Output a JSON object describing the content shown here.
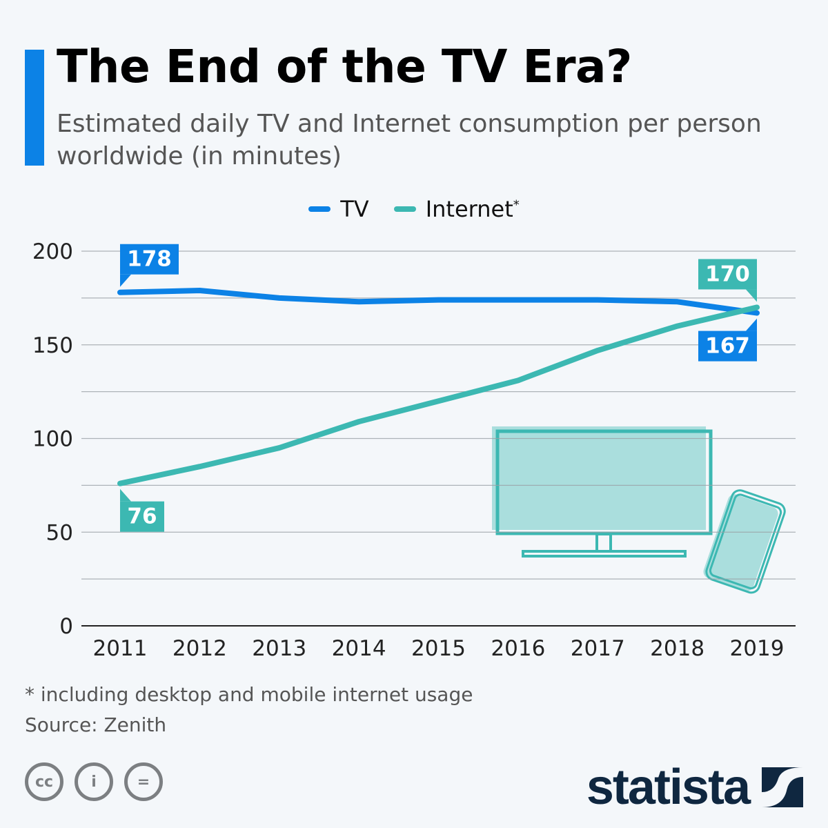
{
  "header": {
    "title": "The End of the TV Era?",
    "subtitle": "Estimated daily TV and Internet consumption per person worldwide (in minutes)"
  },
  "colors": {
    "accent": "#0c82e6",
    "tv": "#0c82e6",
    "internet": "#3cb8b2",
    "logo": "#0f2740"
  },
  "chart_data": {
    "type": "line",
    "title": "The End of the TV Era?",
    "subtitle": "Estimated daily TV and Internet consumption per person worldwide (in minutes)",
    "x": [
      "2011",
      "2012",
      "2013",
      "2014",
      "2015",
      "2016",
      "2017",
      "2018",
      "2019"
    ],
    "series": [
      {
        "name": "TV",
        "color": "#0c82e6",
        "values": [
          178,
          179,
          175,
          173,
          174,
          174,
          174,
          173,
          167
        ]
      },
      {
        "name": "Internet",
        "name_suffix": "*",
        "color": "#3cb8b2",
        "values": [
          76,
          85,
          95,
          109,
          120,
          131,
          147,
          160,
          170
        ]
      }
    ],
    "data_labels": [
      {
        "series": "TV",
        "x": "2011",
        "text": "178"
      },
      {
        "series": "TV",
        "x": "2019",
        "text": "167"
      },
      {
        "series": "Internet",
        "x": "2011",
        "text": "76"
      },
      {
        "series": "Internet",
        "x": "2019",
        "text": "170"
      }
    ],
    "ylim": [
      0,
      200
    ],
    "yticks": [
      0,
      50,
      100,
      150,
      200
    ],
    "grid": true,
    "legend": "top-center",
    "xlabel": "",
    "ylabel": ""
  },
  "illustration": [
    "tv-monitor-icon",
    "smartphone-icon"
  ],
  "footer": {
    "note": "* including desktop and mobile internet usage",
    "source": "Source: Zenith",
    "license_icons": [
      "cc-icon",
      "attribution-icon",
      "no-derivatives-icon"
    ],
    "license_glyphs": [
      "cc",
      "i",
      "="
    ],
    "logo": "statista"
  }
}
